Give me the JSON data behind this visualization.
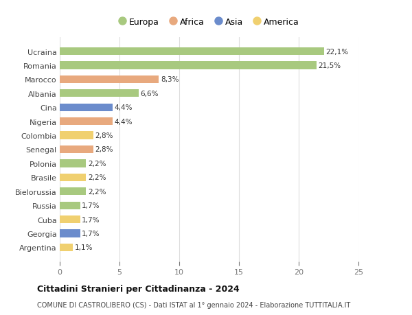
{
  "countries": [
    "Ucraina",
    "Romania",
    "Marocco",
    "Albania",
    "Cina",
    "Nigeria",
    "Colombia",
    "Senegal",
    "Polonia",
    "Brasile",
    "Bielorussia",
    "Russia",
    "Cuba",
    "Georgia",
    "Argentina"
  ],
  "values": [
    22.1,
    21.5,
    8.3,
    6.6,
    4.4,
    4.4,
    2.8,
    2.8,
    2.2,
    2.2,
    2.2,
    1.7,
    1.7,
    1.7,
    1.1
  ],
  "labels": [
    "22,1%",
    "21,5%",
    "8,3%",
    "6,6%",
    "4,4%",
    "4,4%",
    "2,8%",
    "2,8%",
    "2,2%",
    "2,2%",
    "2,2%",
    "1,7%",
    "1,7%",
    "1,7%",
    "1,1%"
  ],
  "continents": [
    "Europa",
    "Europa",
    "Africa",
    "Europa",
    "Asia",
    "Africa",
    "America",
    "Africa",
    "Europa",
    "America",
    "Europa",
    "Europa",
    "America",
    "Asia",
    "America"
  ],
  "colors": {
    "Europa": "#a8c97f",
    "Africa": "#e8a97e",
    "Asia": "#6b8ccc",
    "America": "#f0d070"
  },
  "legend_order": [
    "Europa",
    "Africa",
    "Asia",
    "America"
  ],
  "title": "Cittadini Stranieri per Cittadinanza - 2024",
  "subtitle": "COMUNE DI CASTROLIBERO (CS) - Dati ISTAT al 1° gennaio 2024 - Elaborazione TUTTITALIA.IT",
  "xlim": [
    0,
    25
  ],
  "xticks": [
    0,
    5,
    10,
    15,
    20,
    25
  ],
  "background_color": "#ffffff",
  "grid_color": "#dddddd"
}
